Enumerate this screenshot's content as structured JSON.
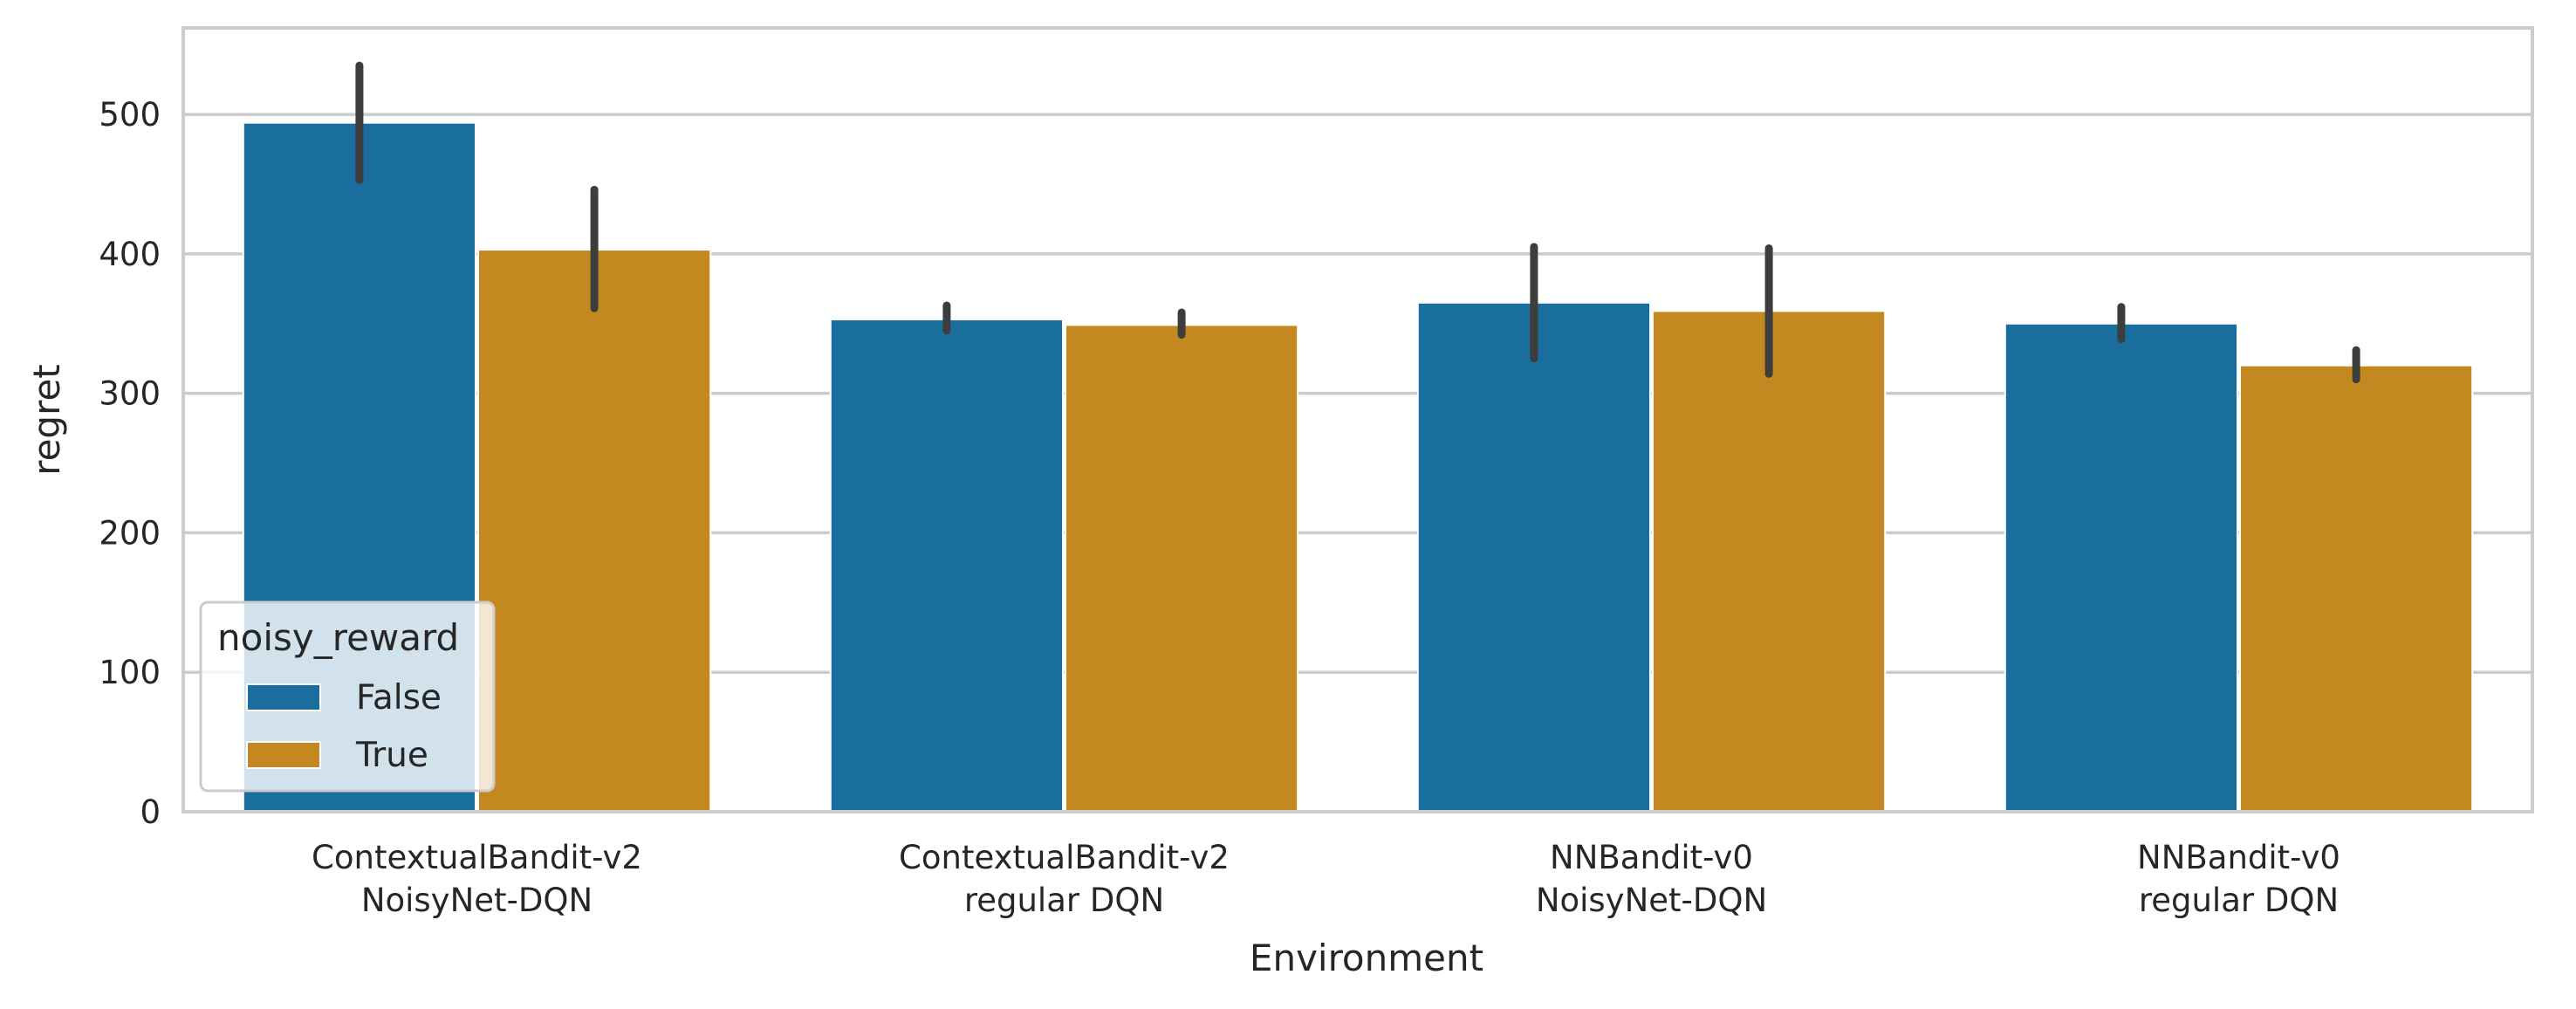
{
  "chart_data": {
    "type": "bar",
    "xlabel": "Environment",
    "ylabel": "regret",
    "ylim": [
      0,
      562
    ],
    "yticks": [
      "0",
      "100",
      "200",
      "300",
      "400",
      "500"
    ],
    "categories": [
      [
        "ContextualBandit-v2",
        "NoisyNet-DQN"
      ],
      [
        "ContextualBandit-v2",
        "regular DQN"
      ],
      [
        "NNBandit-v0",
        "NoisyNet-DQN"
      ],
      [
        "NNBandit-v0",
        "regular DQN"
      ]
    ],
    "legend": {
      "title": "noisy_reward",
      "position": "lower-left"
    },
    "grid": "horizontal",
    "series": [
      {
        "name": "False",
        "color": "#1a6e9e",
        "values": [
          494,
          353,
          365,
          350
        ],
        "ci_low": [
          453,
          345,
          325,
          339
        ],
        "ci_high": [
          535,
          363,
          405,
          362
        ]
      },
      {
        "name": "True",
        "color": "#c48820",
        "values": [
          403,
          349,
          359,
          320
        ],
        "ci_low": [
          361,
          342,
          314,
          310
        ],
        "ci_high": [
          446,
          358,
          404,
          331
        ]
      }
    ]
  }
}
